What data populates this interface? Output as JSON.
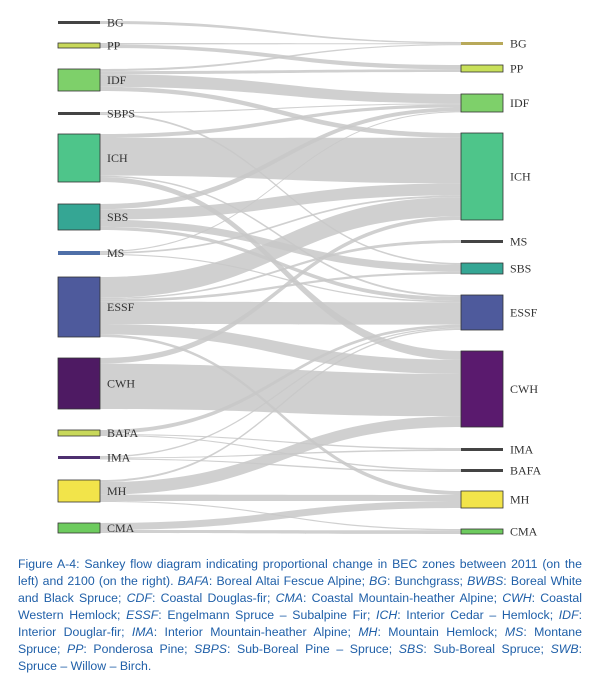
{
  "colors": {
    "link": "#c8c8c8",
    "node_outline": "#333333",
    "label": "#333333",
    "caption": "#1f5fa8"
  },
  "diagram": {
    "left_nodes": [
      {
        "id": "BG",
        "label": "BG",
        "color": "#444444"
      },
      {
        "id": "PP",
        "label": "PP",
        "color": "#c8d85a"
      },
      {
        "id": "IDF",
        "label": "IDF",
        "color": "#7ed06a"
      },
      {
        "id": "SBPS",
        "label": "SBPS",
        "color": "#444444"
      },
      {
        "id": "ICH",
        "label": "ICH",
        "color": "#4ec58a"
      },
      {
        "id": "SBS",
        "label": "SBS",
        "color": "#35a694"
      },
      {
        "id": "MS",
        "label": "MS",
        "color": "#4f6fa8"
      },
      {
        "id": "ESSF",
        "label": "ESSF",
        "color": "#4e5a9c"
      },
      {
        "id": "CWH",
        "label": "CWH",
        "color": "#4e1a63"
      },
      {
        "id": "BAFA",
        "label": "BAFA",
        "color": "#c8d85a"
      },
      {
        "id": "IMA",
        "label": "IMA",
        "color": "#4e3070"
      },
      {
        "id": "MH",
        "label": "MH",
        "color": "#f2e44a"
      },
      {
        "id": "CMA",
        "label": "CMA",
        "color": "#6dcb5e"
      }
    ],
    "right_nodes": [
      {
        "id": "BG",
        "label": "BG",
        "color": "#b8a95a"
      },
      {
        "id": "PP",
        "label": "PP",
        "color": "#c8e05a"
      },
      {
        "id": "IDF",
        "label": "IDF",
        "color": "#7ed06a"
      },
      {
        "id": "ICH",
        "label": "ICH",
        "color": "#4ec58a"
      },
      {
        "id": "MS",
        "label": "MS",
        "color": "#444444"
      },
      {
        "id": "SBS",
        "label": "SBS",
        "color": "#35a694"
      },
      {
        "id": "ESSF",
        "label": "ESSF",
        "color": "#4e5a9c"
      },
      {
        "id": "CWH",
        "label": "CWH",
        "color": "#5a1a6e"
      },
      {
        "id": "IMA",
        "label": "IMA",
        "color": "#444444"
      },
      {
        "id": "BAFA",
        "label": "BAFA",
        "color": "#444444"
      },
      {
        "id": "MH",
        "label": "MH",
        "color": "#f2e44a"
      },
      {
        "id": "CMA",
        "label": "CMA",
        "color": "#6dcb5e"
      }
    ],
    "flows": [
      {
        "from": "BG",
        "to": "BG",
        "value": 0.3
      },
      {
        "from": "PP",
        "to": "PP",
        "value": 0.5
      },
      {
        "from": "PP",
        "to": "BG",
        "value": 0.2
      },
      {
        "from": "IDF",
        "to": "IDF",
        "value": 1.2
      },
      {
        "from": "IDF",
        "to": "PP",
        "value": 0.3
      },
      {
        "from": "IDF",
        "to": "ICH",
        "value": 0.4
      },
      {
        "from": "IDF",
        "to": "BG",
        "value": 0.2
      },
      {
        "from": "SBPS",
        "to": "SBS",
        "value": 0.15
      },
      {
        "from": "SBPS",
        "to": "IDF",
        "value": 0.1
      },
      {
        "from": "ICH",
        "to": "ICH",
        "value": 3.8
      },
      {
        "from": "ICH",
        "to": "IDF",
        "value": 0.4
      },
      {
        "from": "ICH",
        "to": "CWH",
        "value": 0.5
      },
      {
        "from": "ICH",
        "to": "ESSF",
        "value": 0.15
      },
      {
        "from": "SBS",
        "to": "ICH",
        "value": 1.0
      },
      {
        "from": "SBS",
        "to": "SBS",
        "value": 0.7
      },
      {
        "from": "SBS",
        "to": "IDF",
        "value": 0.5
      },
      {
        "from": "SBS",
        "to": "ESSF",
        "value": 0.3
      },
      {
        "from": "MS",
        "to": "ICH",
        "value": 0.15
      },
      {
        "from": "MS",
        "to": "ESSF",
        "value": 0.1
      },
      {
        "from": "MS",
        "to": "IDF",
        "value": 0.1
      },
      {
        "from": "ESSF",
        "to": "ESSF",
        "value": 1.7
      },
      {
        "from": "ESSF",
        "to": "ICH",
        "value": 1.6
      },
      {
        "from": "ESSF",
        "to": "SBS",
        "value": 0.2
      },
      {
        "from": "ESSF",
        "to": "MS",
        "value": 0.1
      },
      {
        "from": "ESSF",
        "to": "CWH",
        "value": 0.8
      },
      {
        "from": "ESSF",
        "to": "MH",
        "value": 0.2
      },
      {
        "from": "CWH",
        "to": "CWH",
        "value": 2.4
      },
      {
        "from": "CWH",
        "to": "ICH",
        "value": 0.3
      },
      {
        "from": "BAFA",
        "to": "ESSF",
        "value": 0.2
      },
      {
        "from": "BAFA",
        "to": "BAFA",
        "value": 0.05
      },
      {
        "from": "BAFA",
        "to": "IMA",
        "value": 0.05
      },
      {
        "from": "IMA",
        "to": "IMA",
        "value": 0.05
      },
      {
        "from": "IMA",
        "to": "BAFA",
        "value": 0.05
      },
      {
        "from": "IMA",
        "to": "ESSF",
        "value": 0.1
      },
      {
        "from": "MH",
        "to": "CWH",
        "value": 0.6
      },
      {
        "from": "MH",
        "to": "MH",
        "value": 0.3
      },
      {
        "from": "MH",
        "to": "ESSF",
        "value": 0.1
      },
      {
        "from": "MH",
        "to": "CMA",
        "value": 0.05
      },
      {
        "from": "CMA",
        "to": "MH",
        "value": 0.35
      },
      {
        "from": "CMA",
        "to": "CMA",
        "value": 0.15
      }
    ]
  },
  "caption": {
    "segments": [
      {
        "text": "Figure A-4: Sankey flow diagram indicating proportional change in BEC zones between 2011 (on the left) and 2100 (on the right). ",
        "italic": false
      },
      {
        "text": "BAFA",
        "italic": true
      },
      {
        "text": ": Boreal Altai Fescue Alpine; ",
        "italic": false
      },
      {
        "text": "BG",
        "italic": true
      },
      {
        "text": ": Bunchgrass; ",
        "italic": false
      },
      {
        "text": "BWBS",
        "italic": true
      },
      {
        "text": ": Boreal White and Black Spruce; ",
        "italic": false
      },
      {
        "text": "CDF",
        "italic": true
      },
      {
        "text": ": Coastal Douglas-fir; ",
        "italic": false
      },
      {
        "text": "CMA",
        "italic": true
      },
      {
        "text": ": Coastal Mountain-heather Alpine; ",
        "italic": false
      },
      {
        "text": "CWH",
        "italic": true
      },
      {
        "text": ": Coastal Western Hemlock; ",
        "italic": false
      },
      {
        "text": "ESSF",
        "italic": true
      },
      {
        "text": ": Engelmann Spruce – Subalpine Fir; ",
        "italic": false
      },
      {
        "text": "ICH",
        "italic": true
      },
      {
        "text": ": Interior Cedar – Hemlock; ",
        "italic": false
      },
      {
        "text": "IDF",
        "italic": true
      },
      {
        "text": ": Interior Douglar-fir; ",
        "italic": false
      },
      {
        "text": "IMA",
        "italic": true
      },
      {
        "text": ": Interior Mountain-heather Alpine; ",
        "italic": false
      },
      {
        "text": "MH",
        "italic": true
      },
      {
        "text": ": Mountain Hemlock; ",
        "italic": false
      },
      {
        "text": "MS",
        "italic": true
      },
      {
        "text": ": Montane Spruce; ",
        "italic": false
      },
      {
        "text": "PP",
        "italic": true
      },
      {
        "text": ": Ponderosa Pine; ",
        "italic": false
      },
      {
        "text": "SBPS",
        "italic": true
      },
      {
        "text": ": Sub-Boreal Pine – Spruce; ",
        "italic": false
      },
      {
        "text": "SBS",
        "italic": true
      },
      {
        "text": ": Sub-Boreal Spruce; ",
        "italic": false
      },
      {
        "text": "SWB",
        "italic": true
      },
      {
        "text": ": Spruce – Willow – Birch.",
        "italic": false
      }
    ]
  }
}
